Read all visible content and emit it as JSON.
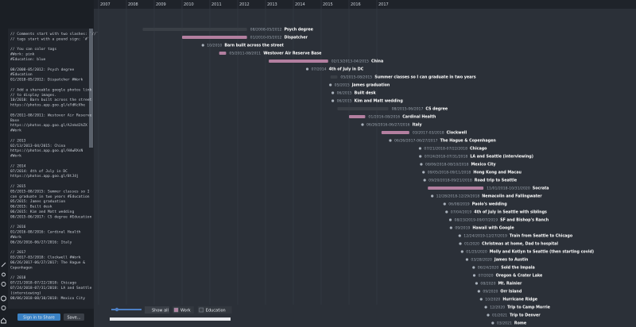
{
  "editor": {
    "lines": [
      "// Comments start with two slashes: `//`",
      "// tags start with a pound sign: `#`",
      "",
      "// You can color tags",
      "#Work: pink",
      "#Education: blue",
      "",
      "08/2008-05/2012: Psych degree",
      "#Education",
      "01/2010-05/2012: Dispatcher #Work",
      "",
      "// Add a shareable google photos link",
      "// to display images.",
      "10/2010: Barn built across the street",
      "https://photos.app.goo.gl/eYdKcVhe",
      "",
      "05/2011-08/2011: Westover Air Reserve",
      "Base",
      "https://photos.app.goo.gl/AJnkdJhZX",
      "#Work",
      "",
      "// 2013",
      "02/13/2013-04/2015: China",
      "https://photos.app.goo.gl/H4wRXsN",
      "#Work",
      "",
      "// 2014",
      "07/2014: 4th of July in DC",
      "https://photos.app.goo.gl/8tJ4j",
      "",
      "// 2015",
      "05/2015-08/2015: Summer classes so I",
      "can graduate in two years #Education",
      "05/2015: James graduation",
      "06/2015: Built desk",
      "06/2015: Kim and Matt wedding",
      "08/2015-06/2017: CS degree #Education",
      "",
      "// 2016",
      "01/2016-08/2016: Cardinal Health",
      "#Work",
      "06/26/2016-06/27/2016: Italy",
      "",
      "// 2017",
      "03/2017-03/2018: Clockwell #Work",
      "06/26/2017-06/27/2017: The Hague &",
      "Copenhagen",
      "",
      "// 2018",
      "07/21/2018-07/22/2018: Chicago",
      "07/24/2018-07/31/2018: LA and Seattle",
      "(interviewing)",
      "08/06/2018-08/10/2018: Mexico City"
    ]
  },
  "toolbar": {
    "show_all": "Show all",
    "tags": [
      {
        "name": "Work",
        "color": "#b37fa0"
      },
      {
        "name": "Education",
        "color": "#3a3f46"
      }
    ]
  },
  "account": {
    "sign_in": "Sign in to Share",
    "save": "Save..."
  },
  "timeline": {
    "years": [
      "2007",
      "2008",
      "2009",
      "2010",
      "2011",
      "2012",
      "2013",
      "2014",
      "2015",
      "2016",
      "2017"
    ],
    "events": [
      {
        "date": "08/2008-05/2012",
        "title": "Psych degree",
        "tag": "Education"
      },
      {
        "date": "01/2010-05/2012",
        "title": "Dispatcher",
        "tag": "Work"
      },
      {
        "date": "10/2010",
        "title": "Barn built across the street"
      },
      {
        "date": "05/2011-08/2011",
        "title": "Westover Air Reserve Base",
        "tag": "Work"
      },
      {
        "date": "02/13/2013-04/2015",
        "title": "China",
        "tag": "Work"
      },
      {
        "date": "07/2014",
        "title": "4th of July in DC"
      },
      {
        "date": "05/2015-08/2015",
        "title": "Summer classes so I can graduate in two years",
        "tag": "Education"
      },
      {
        "date": "05/2015",
        "title": "James graduation"
      },
      {
        "date": "06/2015",
        "title": "Built desk"
      },
      {
        "date": "06/2015",
        "title": "Kim and Matt wedding"
      },
      {
        "date": "08/2015-06/2017",
        "title": "CS degree",
        "tag": "Education"
      },
      {
        "date": "01/2016-08/2016",
        "title": "Cardinal Health",
        "tag": "Work"
      },
      {
        "date": "06/26/2016-06/27/2016",
        "title": "Italy"
      },
      {
        "date": "03/2017-03/2018",
        "title": "Clockwell",
        "tag": "Work"
      },
      {
        "date": "06/26/2017-06/27/2017",
        "title": "The Hague & Copenhagen"
      },
      {
        "date": "07/21/2018-07/22/2018",
        "title": "Chicago"
      },
      {
        "date": "07/24/2018-07/31/2018",
        "title": "LA and Seattle (interviewing)"
      },
      {
        "date": "08/06/2018-08/10/2018",
        "title": "Mexico City"
      },
      {
        "date": "09/05/2018-09/11/2018",
        "title": "Hong Kong and Macau"
      },
      {
        "date": "09/20/2018-09/21/2018",
        "title": "Road trip to Seattle"
      },
      {
        "date": "11/01/2018-10/31/2020",
        "title": "Socrata",
        "tag": "Work"
      },
      {
        "date": "12/28/2018-12/29/2018",
        "title": "Nemacolin and Fallingwater"
      },
      {
        "date": "06/08/2019",
        "title": "Paolo's wedding"
      },
      {
        "date": "07/04/2019",
        "title": "4th of July in Seattle with siblings"
      },
      {
        "date": "08/23/2019-09/07/2019",
        "title": "SF and Bishop's Ranch"
      },
      {
        "date": "09/2019",
        "title": "Hawaii with Google"
      },
      {
        "date": "12/24/2019-12/27/2019",
        "title": "Train from Seattle to Chicago"
      },
      {
        "date": "01/2020",
        "title": "Christmas at home, Dad to hospital"
      },
      {
        "date": "01/25/2020",
        "title": "Molly and Kotlyn to Seattle (then starting covid)"
      },
      {
        "date": "03/28/2020",
        "title": "James to Austin"
      },
      {
        "date": "06/24/2020",
        "title": "Sold the Impala"
      },
      {
        "date": "07/2020",
        "title": "Oregon & Crater Lake"
      },
      {
        "date": "08/2020",
        "title": "Mt. Rainier"
      },
      {
        "date": "09/2020",
        "title": "Orr Island"
      },
      {
        "date": "10/2020",
        "title": "Hurricane Ridge"
      },
      {
        "date": "12/2020",
        "title": "Trip to Camp Morrie"
      },
      {
        "date": "01/2021",
        "title": "Trip to Denver"
      },
      {
        "date": "03/2021",
        "title": "Rome"
      }
    ]
  }
}
